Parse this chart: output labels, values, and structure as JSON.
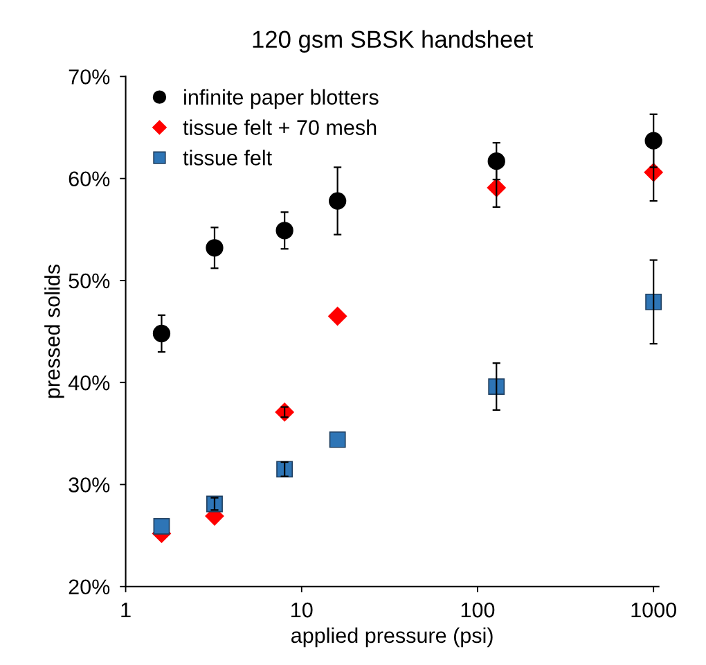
{
  "chart_data": {
    "type": "scatter",
    "title": "120 gsm SBSK handsheet",
    "xlabel": "applied pressure (psi)",
    "ylabel": "pressed solids",
    "log": "x",
    "xlim": [
      1,
      1070
    ],
    "xticks": [
      1,
      10,
      100,
      1000
    ],
    "ylim": [
      20,
      70
    ],
    "yticks": [
      {
        "value": 20,
        "label": "20%"
      },
      {
        "value": 30,
        "label": "30%"
      },
      {
        "value": 40,
        "label": "40%"
      },
      {
        "value": 50,
        "label": "50%"
      },
      {
        "value": 60,
        "label": "60%"
      },
      {
        "value": 70,
        "label": "70%"
      }
    ],
    "grid": false,
    "legend": "top left",
    "series": [
      {
        "name": "infinite paper blotters",
        "color": "#000000",
        "marker": "circle",
        "x": [
          1.6,
          3.2,
          8,
          16,
          128,
          1000
        ],
        "values": [
          44.8,
          53.2,
          54.9,
          57.8,
          61.7,
          63.7
        ],
        "errors": [
          1.8,
          2.0,
          1.8,
          3.3,
          1.8,
          2.6
        ]
      },
      {
        "name": "tissue felt + 70 mesh",
        "color": "#ff0000",
        "marker": "diamond",
        "x": [
          1.6,
          3.2,
          8,
          16,
          128,
          1000
        ],
        "values": [
          25.2,
          26.9,
          37.1,
          46.5,
          59.1,
          60.6
        ],
        "errors": [
          null,
          null,
          0.5,
          null,
          1.9,
          2.8
        ]
      },
      {
        "name": "tissue felt",
        "color": "#2e75b6",
        "marker": "square",
        "x": [
          1.6,
          3.2,
          8,
          16,
          128,
          1000
        ],
        "values": [
          25.9,
          28.1,
          31.5,
          34.4,
          39.6,
          47.9
        ],
        "errors": [
          null,
          0.6,
          0.7,
          null,
          2.3,
          4.1
        ]
      }
    ]
  }
}
